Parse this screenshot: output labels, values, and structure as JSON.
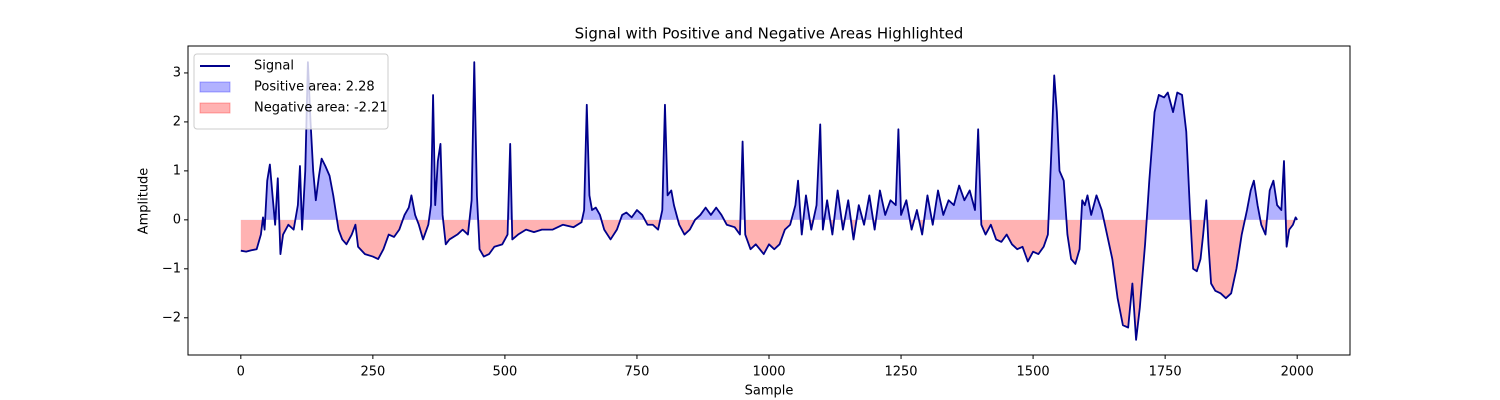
{
  "chart_data": {
    "type": "line",
    "title": "Signal with Positive and Negative Areas Highlighted",
    "x_label": "Sample",
    "y_label": "Amplitude",
    "xlim": [
      -100,
      2100
    ],
    "ylim": [
      -2.76,
      3.55
    ],
    "xticks": [
      0,
      250,
      500,
      750,
      1000,
      1250,
      1500,
      1750,
      2000
    ],
    "yticks": [
      {
        "value": -2,
        "label": "−2"
      },
      {
        "value": -1,
        "label": "−1"
      },
      0,
      1,
      2,
      3
    ],
    "legend_position": "upper left",
    "x": [
      0,
      10,
      20,
      30,
      38,
      42,
      45,
      50,
      55,
      60,
      65,
      70,
      75,
      80,
      90,
      100,
      108,
      112,
      116,
      122,
      127,
      132,
      137,
      142,
      148,
      153,
      160,
      168,
      175,
      185,
      192,
      200,
      210,
      217,
      222,
      235,
      250,
      260,
      270,
      280,
      290,
      300,
      310,
      318,
      323,
      330,
      337,
      345,
      355,
      360,
      364,
      368,
      373,
      378,
      382,
      388,
      395,
      410,
      420,
      430,
      437,
      442,
      447,
      452,
      460,
      470,
      480,
      495,
      505,
      510,
      514,
      525,
      540,
      555,
      570,
      590,
      610,
      630,
      645,
      650,
      655,
      660,
      665,
      672,
      680,
      688,
      700,
      712,
      722,
      730,
      740,
      750,
      760,
      770,
      780,
      790,
      798,
      803,
      808,
      815,
      820,
      830,
      840,
      850,
      860,
      870,
      880,
      890,
      900,
      910,
      920,
      935,
      945,
      950,
      955,
      965,
      975,
      990,
      1000,
      1010,
      1020,
      1030,
      1040,
      1050,
      1055,
      1062,
      1070,
      1080,
      1090,
      1097,
      1102,
      1110,
      1120,
      1130,
      1140,
      1150,
      1160,
      1170,
      1180,
      1190,
      1200,
      1210,
      1220,
      1230,
      1240,
      1245,
      1250,
      1260,
      1270,
      1280,
      1290,
      1300,
      1310,
      1320,
      1330,
      1340,
      1350,
      1360,
      1370,
      1380,
      1390,
      1396,
      1402,
      1410,
      1420,
      1430,
      1440,
      1450,
      1460,
      1470,
      1480,
      1490,
      1500,
      1510,
      1520,
      1528,
      1535,
      1540,
      1545,
      1550,
      1558,
      1565,
      1572,
      1580,
      1588,
      1593,
      1598,
      1603,
      1610,
      1620,
      1630,
      1640,
      1650,
      1660,
      1670,
      1680,
      1688,
      1695,
      1702,
      1712,
      1720,
      1730,
      1738,
      1748,
      1755,
      1765,
      1773,
      1782,
      1790,
      1797,
      1803,
      1810,
      1817,
      1822,
      1828,
      1832,
      1837,
      1845,
      1855,
      1865,
      1875,
      1885,
      1895,
      1905,
      1912,
      1918,
      1925,
      1932,
      1940,
      1948,
      1955,
      1962,
      1970,
      1975,
      1980,
      1985,
      1992,
      1997,
      2000
    ],
    "series": [
      {
        "name": "Signal",
        "color": "#00008b",
        "values": [
          -0.63,
          -0.65,
          -0.62,
          -0.6,
          -0.3,
          0.05,
          -0.2,
          0.8,
          1.13,
          0.5,
          -0.1,
          0.85,
          -0.7,
          -0.3,
          -0.1,
          -0.2,
          0.3,
          1.1,
          -0.2,
          1.0,
          3.22,
          2.0,
          1.0,
          0.4,
          0.9,
          1.25,
          1.1,
          0.9,
          0.5,
          -0.2,
          -0.4,
          -0.5,
          -0.3,
          -0.1,
          -0.55,
          -0.7,
          -0.75,
          -0.8,
          -0.6,
          -0.3,
          -0.35,
          -0.2,
          0.1,
          0.25,
          0.5,
          0.1,
          -0.1,
          -0.4,
          -0.1,
          0.3,
          2.55,
          0.3,
          1.2,
          1.55,
          0.1,
          -0.5,
          -0.4,
          -0.3,
          -0.2,
          -0.3,
          0.4,
          3.22,
          0.5,
          -0.6,
          -0.75,
          -0.7,
          -0.55,
          -0.5,
          -0.3,
          1.55,
          -0.4,
          -0.3,
          -0.2,
          -0.25,
          -0.2,
          -0.2,
          -0.1,
          -0.15,
          -0.05,
          0.2,
          2.35,
          0.5,
          0.2,
          0.25,
          0.1,
          -0.2,
          -0.4,
          -0.2,
          0.1,
          0.15,
          0.05,
          0.2,
          0.1,
          -0.1,
          -0.1,
          -0.2,
          0.2,
          2.35,
          0.5,
          0.6,
          0.3,
          -0.1,
          -0.3,
          -0.2,
          0.0,
          0.1,
          0.25,
          0.1,
          0.25,
          0.1,
          -0.1,
          -0.15,
          -0.3,
          1.6,
          -0.3,
          -0.6,
          -0.5,
          -0.7,
          -0.5,
          -0.6,
          -0.5,
          -0.2,
          -0.1,
          0.3,
          0.8,
          -0.3,
          0.5,
          -0.2,
          0.3,
          1.95,
          -0.2,
          0.4,
          -0.3,
          0.6,
          -0.2,
          0.4,
          -0.4,
          0.3,
          -0.1,
          0.5,
          -0.2,
          0.6,
          0.1,
          0.4,
          0.3,
          1.85,
          0.1,
          0.4,
          -0.2,
          0.2,
          -0.3,
          0.5,
          -0.1,
          0.6,
          0.1,
          0.4,
          0.3,
          0.7,
          0.4,
          0.6,
          0.2,
          1.85,
          -0.1,
          -0.3,
          -0.1,
          -0.4,
          -0.45,
          -0.3,
          -0.5,
          -0.6,
          -0.55,
          -0.85,
          -0.65,
          -0.7,
          -0.55,
          -0.3,
          1.5,
          2.95,
          2.2,
          1.0,
          0.8,
          -0.3,
          -0.8,
          -0.9,
          -0.6,
          0.4,
          0.3,
          0.5,
          0.1,
          0.5,
          0.2,
          -0.3,
          -0.8,
          -1.6,
          -2.15,
          -2.2,
          -1.3,
          -2.45,
          -1.8,
          -0.5,
          0.8,
          2.2,
          2.55,
          2.5,
          2.6,
          2.2,
          2.6,
          2.55,
          1.8,
          0.2,
          -1.0,
          -1.05,
          -0.8,
          -0.3,
          0.4,
          -0.5,
          -1.3,
          -1.45,
          -1.5,
          -1.6,
          -1.5,
          -1.0,
          -0.3,
          0.2,
          0.6,
          0.8,
          0.3,
          -0.1,
          -0.3,
          0.6,
          0.8,
          0.3,
          0.2,
          1.2,
          -0.55,
          -0.2,
          -0.1,
          0.05,
          0.0
        ]
      }
    ],
    "positive_fill": {
      "name": "Positive area: 2.28",
      "color": "#0000ff"
    },
    "negative_fill": {
      "name": "Negative area: -2.21",
      "color": "#ff0000"
    }
  }
}
